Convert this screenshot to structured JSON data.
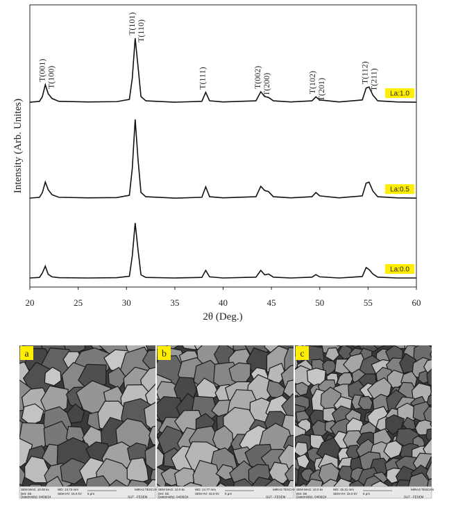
{
  "chart_data": {
    "type": "line",
    "xlabel": "2θ (Deg.)",
    "ylabel": "Intensity (Arb. Unites)",
    "x": [
      20,
      21,
      21.3,
      21.6,
      21.9,
      22.3,
      23,
      26,
      29,
      30.3,
      30.6,
      30.9,
      31.2,
      31.5,
      32,
      35,
      37.8,
      38.2,
      38.6,
      40,
      43.4,
      43.9,
      44.3,
      44.7,
      45.2,
      47,
      49.2,
      49.6,
      50.0,
      52,
      54.4,
      54.8,
      55.1,
      55.5,
      56,
      58,
      60
    ],
    "xlim": [
      20,
      60
    ],
    "xticks": [
      20,
      25,
      30,
      35,
      40,
      45,
      50,
      55,
      60
    ],
    "ylim": [
      0,
      100
    ],
    "legend_color": "#ffee00",
    "series": [
      {
        "name": "La:1.0",
        "color": "#111111",
        "values": [
          65.5,
          65.8,
          67.5,
          71.7,
          68.5,
          66.8,
          65.8,
          65.6,
          65.7,
          66.5,
          74,
          88.2,
          78,
          67.5,
          66,
          65.5,
          65.8,
          69.0,
          66,
          65.6,
          66,
          69.2,
          67.5,
          67.2,
          66,
          65.6,
          66,
          67.4,
          66.3,
          65.6,
          66.3,
          70.5,
          70.9,
          68,
          66,
          65.6,
          65.5
        ]
      },
      {
        "name": "La:0.5",
        "color": "#111111",
        "values": [
          31.5,
          31.8,
          33.5,
          37.2,
          34.5,
          32.7,
          31.8,
          31.6,
          31.7,
          32.5,
          42,
          59.4,
          45,
          33.5,
          32,
          31.5,
          31.8,
          35.5,
          32,
          31.6,
          32,
          35.7,
          34.2,
          33.8,
          32,
          31.6,
          32,
          33.5,
          32.3,
          31.6,
          32.3,
          36.8,
          37.2,
          34,
          32,
          31.6,
          31.5
        ]
      },
      {
        "name": "La:0.0",
        "color": "#111111",
        "values": [
          3.2,
          3.4,
          5,
          7.4,
          4.5,
          3.6,
          3.3,
          3.2,
          3.3,
          3.8,
          11,
          22.7,
          13,
          4.3,
          3.4,
          3.2,
          3.4,
          5.9,
          3.6,
          3.2,
          3.5,
          5.9,
          4.3,
          4.6,
          3.5,
          3.2,
          3.5,
          4.4,
          3.6,
          3.2,
          3.7,
          6.9,
          6.2,
          4.6,
          3.5,
          3.2,
          3.2
        ]
      }
    ],
    "annotations": [
      {
        "x": 21.6,
        "y": 71.7,
        "labels": [
          "T(001)",
          "T(100)"
        ]
      },
      {
        "x": 30.9,
        "y": 88.2,
        "labels": [
          "T(101)",
          "T(110)"
        ]
      },
      {
        "x": 38.2,
        "y": 69.0,
        "labels": [
          "T(111)"
        ]
      },
      {
        "x": 43.9,
        "y": 69.2,
        "labels": [
          "T(002)",
          "T(200)"
        ]
      },
      {
        "x": 49.6,
        "y": 67.4,
        "labels": [
          "T(102)",
          "T(201)"
        ]
      },
      {
        "x": 55.0,
        "y": 70.9,
        "labels": [
          "T(112)",
          "T(211)"
        ]
      }
    ]
  },
  "images": [
    {
      "label": "a",
      "info": [
        "SEM MAG: 10.00 kx",
        "WD: 13.73 mm",
        "Det: SE",
        "SEM HV: 15.0 kV",
        "5 μm",
        "MIRA3 TESCAN",
        "Date(m/d/y): 04/06/24",
        "SUT - FESEM"
      ]
    },
    {
      "label": "b",
      "info": [
        "SEM MAG: 10.0 kx",
        "WD: 14.77 mm",
        "Det: SE",
        "SEM HV: 15.0 kV",
        "5 μm",
        "MIRA3 TESCAN",
        "Date(m/d/y): 04/06/24",
        "SUT - FESEM"
      ]
    },
    {
      "label": "c",
      "info": [
        "SEM MAG: 10.0 kx",
        "WD: 15.31 mm",
        "Det: SE",
        "SEM HV: 15.0 kV",
        "5 μm",
        "MIRA3 TESCAN",
        "Date(m/d/y): 04/06/24",
        "SUT - FESEM"
      ]
    }
  ]
}
